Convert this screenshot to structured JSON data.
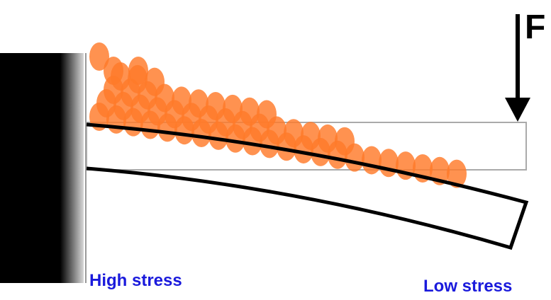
{
  "force_label": "F",
  "left_label": "High stress",
  "right_label": "Low stress"
}
